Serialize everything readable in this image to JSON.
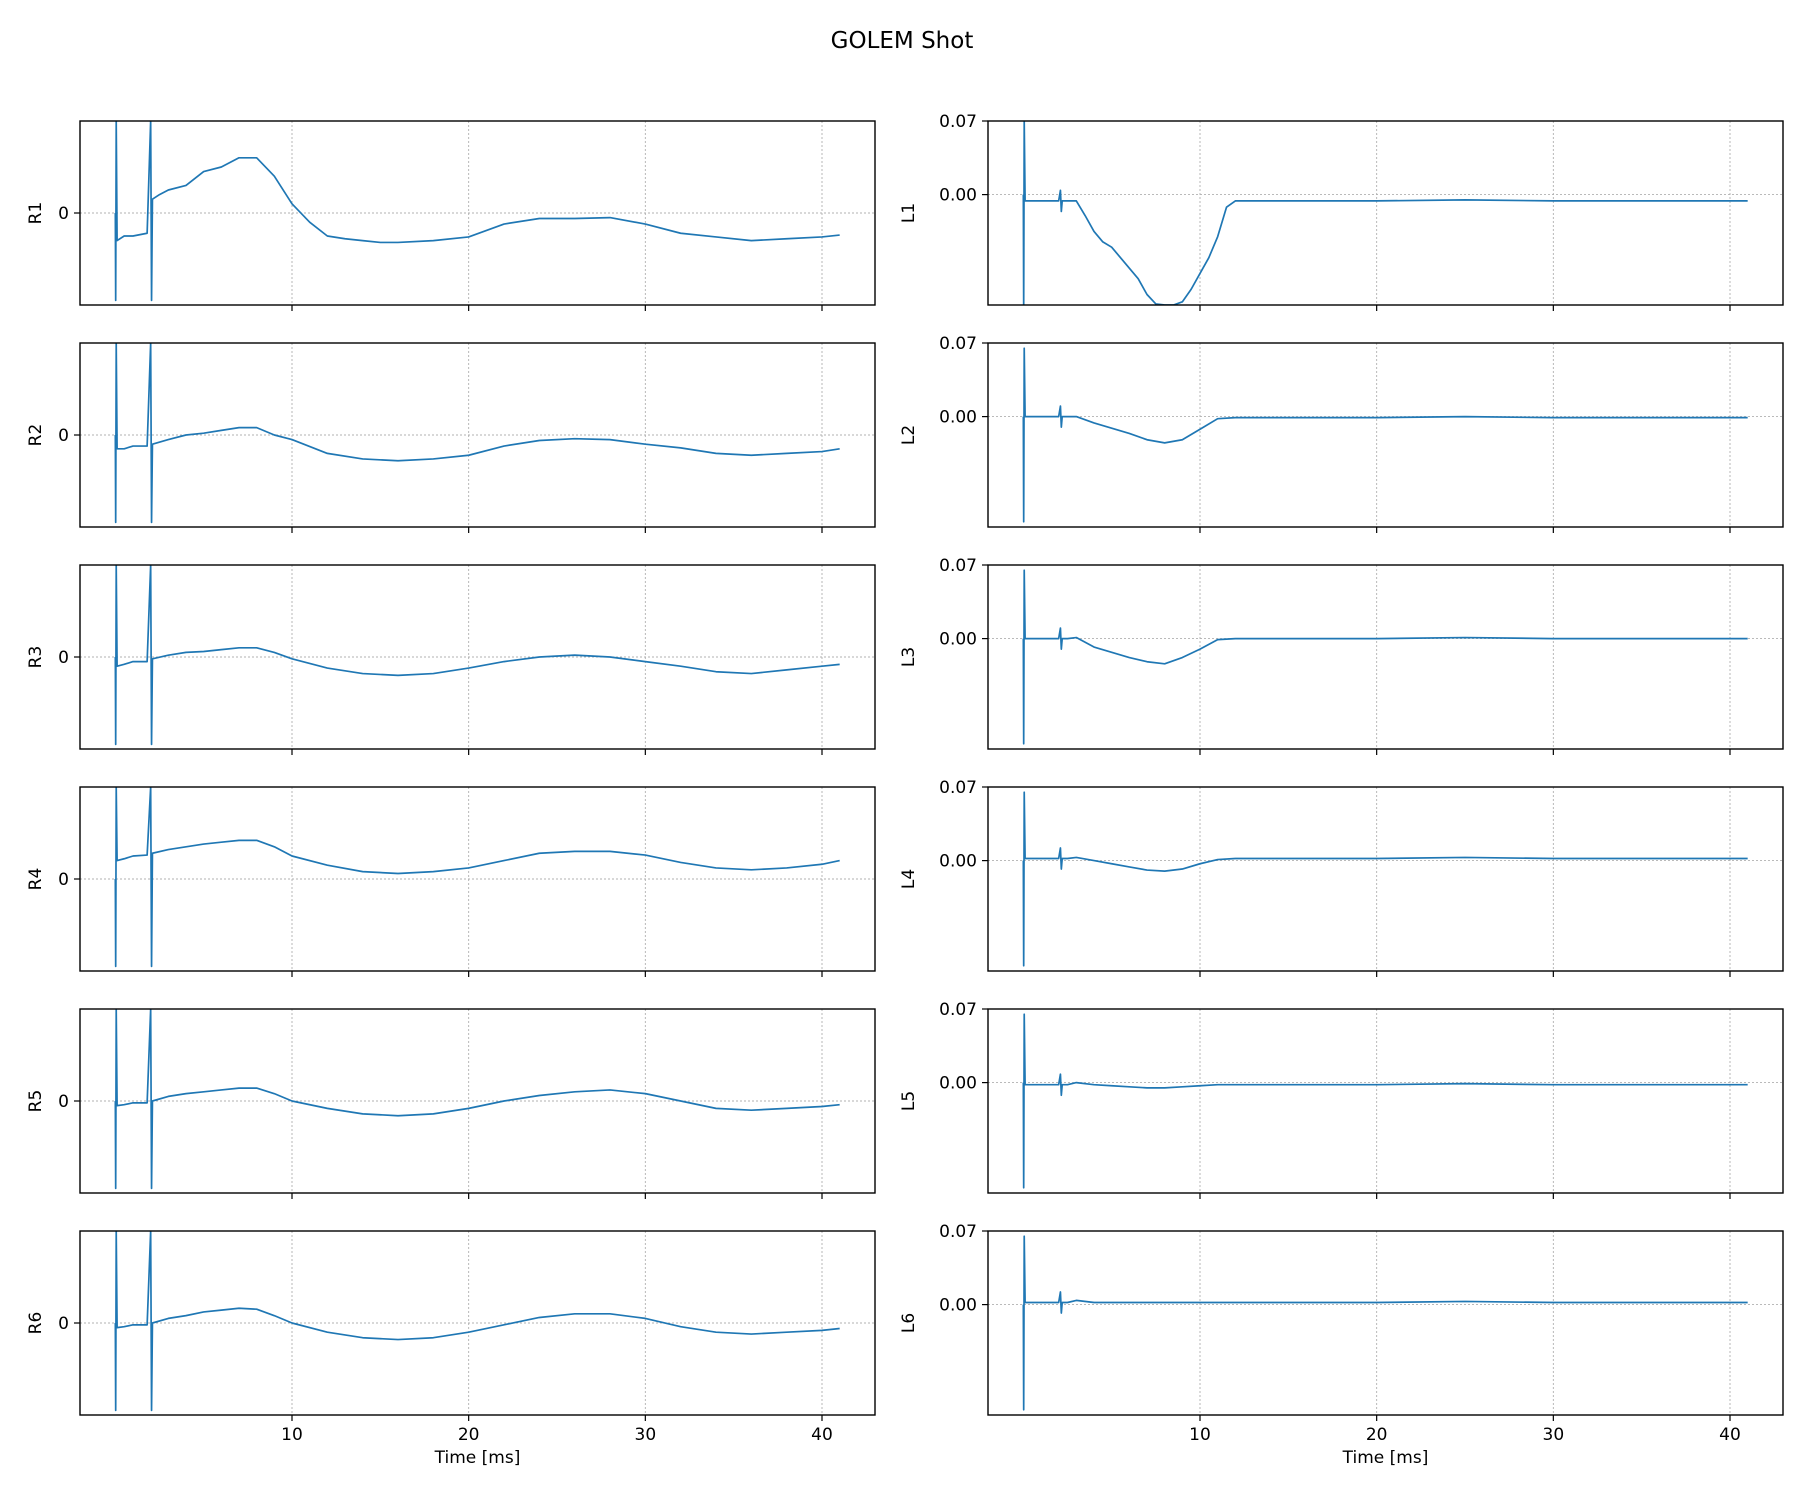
{
  "figure": {
    "title": "GOLEM Shot"
  },
  "style": {
    "series_color": "#1f77b4",
    "grid_color": "#b0b0b0"
  },
  "chart_data": [
    {
      "type": "line",
      "panel": "R1",
      "ylabel": "R1",
      "xlabel": "",
      "xlim": [
        -2,
        43
      ],
      "ylim": [
        -1,
        1
      ],
      "yticks": [
        0
      ],
      "ytick_labels": [
        "0"
      ],
      "xticks": [
        10,
        20,
        30,
        40
      ],
      "xtick_labels": [
        "",
        "",
        "",
        ""
      ],
      "grid": true,
      "x": [
        0,
        0.02,
        0.05,
        0.1,
        0.5,
        1,
        1.8,
        2,
        2.05,
        2.1,
        2.5,
        3,
        4,
        5,
        6,
        7,
        8,
        9,
        10,
        11,
        12,
        13,
        14,
        15,
        16,
        18,
        20,
        22,
        24,
        26,
        28,
        30,
        32,
        34,
        36,
        38,
        40,
        41
      ],
      "y": [
        0,
        -0.95,
        1,
        -0.3,
        -0.25,
        -0.25,
        -0.22,
        1,
        -0.95,
        0.15,
        0.2,
        0.25,
        0.3,
        0.45,
        0.5,
        0.6,
        0.6,
        0.4,
        0.1,
        -0.1,
        -0.25,
        -0.28,
        -0.3,
        -0.32,
        -0.32,
        -0.3,
        -0.26,
        -0.12,
        -0.06,
        -0.06,
        -0.05,
        -0.12,
        -0.22,
        -0.26,
        -0.3,
        -0.28,
        -0.26,
        -0.24
      ]
    },
    {
      "type": "line",
      "panel": "R2",
      "ylabel": "R2",
      "xlabel": "",
      "xlim": [
        -2,
        43
      ],
      "ylim": [
        -1,
        1
      ],
      "yticks": [
        0
      ],
      "ytick_labels": [
        "0"
      ],
      "xticks": [
        10,
        20,
        30,
        40
      ],
      "xtick_labels": [
        "",
        "",
        "",
        ""
      ],
      "grid": true,
      "x": [
        0,
        0.02,
        0.05,
        0.1,
        0.5,
        1,
        1.8,
        2,
        2.05,
        2.1,
        3,
        4,
        5,
        6,
        7,
        8,
        9,
        10,
        12,
        14,
        16,
        18,
        20,
        22,
        24,
        26,
        28,
        30,
        32,
        34,
        36,
        38,
        40,
        41
      ],
      "y": [
        0,
        -0.95,
        1,
        -0.15,
        -0.15,
        -0.12,
        -0.12,
        1,
        -0.95,
        -0.1,
        -0.05,
        0,
        0.02,
        0.05,
        0.08,
        0.08,
        0,
        -0.05,
        -0.2,
        -0.26,
        -0.28,
        -0.26,
        -0.22,
        -0.12,
        -0.06,
        -0.04,
        -0.05,
        -0.1,
        -0.14,
        -0.2,
        -0.22,
        -0.2,
        -0.18,
        -0.15
      ]
    },
    {
      "type": "line",
      "panel": "R3",
      "ylabel": "R3",
      "xlabel": "",
      "xlim": [
        -2,
        43
      ],
      "ylim": [
        -1,
        1
      ],
      "yticks": [
        0
      ],
      "ytick_labels": [
        "0"
      ],
      "xticks": [
        10,
        20,
        30,
        40
      ],
      "xtick_labels": [
        "",
        "",
        "",
        ""
      ],
      "grid": true,
      "x": [
        0,
        0.02,
        0.05,
        0.1,
        0.5,
        1,
        1.8,
        2,
        2.05,
        2.1,
        3,
        4,
        5,
        6,
        7,
        8,
        9,
        10,
        12,
        14,
        16,
        18,
        20,
        22,
        24,
        26,
        28,
        30,
        32,
        34,
        36,
        38,
        40,
        41
      ],
      "y": [
        0,
        -0.95,
        1,
        -0.1,
        -0.08,
        -0.05,
        -0.05,
        1,
        -0.95,
        -0.02,
        0.02,
        0.05,
        0.06,
        0.08,
        0.1,
        0.1,
        0.05,
        -0.02,
        -0.12,
        -0.18,
        -0.2,
        -0.18,
        -0.12,
        -0.05,
        0,
        0.02,
        0,
        -0.05,
        -0.1,
        -0.16,
        -0.18,
        -0.14,
        -0.1,
        -0.08
      ]
    },
    {
      "type": "line",
      "panel": "R4",
      "ylabel": "R4",
      "xlabel": "",
      "xlim": [
        -2,
        43
      ],
      "ylim": [
        -1,
        1
      ],
      "yticks": [
        0
      ],
      "ytick_labels": [
        "0"
      ],
      "xticks": [
        10,
        20,
        30,
        40
      ],
      "xtick_labels": [
        "",
        "",
        "",
        ""
      ],
      "grid": true,
      "x": [
        0,
        0.02,
        0.05,
        0.1,
        0.5,
        1,
        1.8,
        2,
        2.05,
        2.1,
        3,
        4,
        5,
        6,
        7,
        8,
        9,
        10,
        12,
        14,
        16,
        18,
        20,
        22,
        24,
        26,
        28,
        30,
        32,
        34,
        36,
        38,
        40,
        41
      ],
      "y": [
        0,
        -0.95,
        1,
        0.2,
        0.22,
        0.25,
        0.26,
        1,
        -0.95,
        0.28,
        0.32,
        0.35,
        0.38,
        0.4,
        0.42,
        0.42,
        0.35,
        0.25,
        0.15,
        0.08,
        0.06,
        0.08,
        0.12,
        0.2,
        0.28,
        0.3,
        0.3,
        0.26,
        0.18,
        0.12,
        0.1,
        0.12,
        0.16,
        0.2
      ]
    },
    {
      "type": "line",
      "panel": "R5",
      "ylabel": "R5",
      "xlabel": "",
      "xlim": [
        -2,
        43
      ],
      "ylim": [
        -1,
        1
      ],
      "yticks": [
        0
      ],
      "ytick_labels": [
        "0"
      ],
      "xticks": [
        10,
        20,
        30,
        40
      ],
      "xtick_labels": [
        "",
        "",
        "",
        ""
      ],
      "grid": true,
      "x": [
        0,
        0.02,
        0.05,
        0.1,
        0.5,
        1,
        1.8,
        2,
        2.05,
        2.1,
        3,
        4,
        5,
        6,
        7,
        8,
        9,
        10,
        12,
        14,
        16,
        18,
        20,
        22,
        24,
        26,
        28,
        30,
        32,
        34,
        36,
        38,
        40,
        41
      ],
      "y": [
        0,
        -0.95,
        1,
        -0.05,
        -0.04,
        -0.02,
        -0.02,
        1,
        -0.95,
        0,
        0.05,
        0.08,
        0.1,
        0.12,
        0.14,
        0.14,
        0.08,
        0,
        -0.08,
        -0.14,
        -0.16,
        -0.14,
        -0.08,
        0,
        0.06,
        0.1,
        0.12,
        0.08,
        0,
        -0.08,
        -0.1,
        -0.08,
        -0.06,
        -0.04
      ]
    },
    {
      "type": "line",
      "panel": "R6",
      "ylabel": "R6",
      "xlabel": "Time [ms]",
      "xlim": [
        -2,
        43
      ],
      "ylim": [
        -1,
        1
      ],
      "yticks": [
        0
      ],
      "ytick_labels": [
        "0"
      ],
      "xticks": [
        10,
        20,
        30,
        40
      ],
      "xtick_labels": [
        "10",
        "20",
        "30",
        "40"
      ],
      "grid": true,
      "x": [
        0,
        0.02,
        0.05,
        0.1,
        0.5,
        1,
        1.8,
        2,
        2.05,
        2.1,
        3,
        4,
        5,
        6,
        7,
        8,
        9,
        10,
        12,
        14,
        16,
        18,
        20,
        22,
        24,
        26,
        28,
        30,
        32,
        34,
        36,
        38,
        40,
        41
      ],
      "y": [
        0,
        -0.95,
        1,
        -0.05,
        -0.04,
        -0.02,
        -0.02,
        1,
        -0.95,
        0,
        0.05,
        0.08,
        0.12,
        0.14,
        0.16,
        0.15,
        0.08,
        0,
        -0.1,
        -0.16,
        -0.18,
        -0.16,
        -0.1,
        -0.02,
        0.06,
        0.1,
        0.1,
        0.05,
        -0.04,
        -0.1,
        -0.12,
        -0.1,
        -0.08,
        -0.06
      ]
    },
    {
      "type": "line",
      "panel": "L1",
      "ylabel": "L1",
      "xlabel": "",
      "xlim": [
        -2,
        43
      ],
      "ylim": [
        -0.105,
        0.07
      ],
      "yticks": [
        0.07,
        0
      ],
      "ytick_labels": [
        "0.07",
        "0.00"
      ],
      "xticks": [
        10,
        20,
        30,
        40
      ],
      "xtick_labels": [
        "",
        "",
        "",
        ""
      ],
      "grid": true,
      "x": [
        0,
        0.02,
        0.05,
        0.1,
        0.5,
        1,
        2,
        2.1,
        2.15,
        2.2,
        2.5,
        3,
        3.5,
        4,
        4.5,
        5,
        5.5,
        6,
        6.5,
        7,
        7.5,
        8,
        8.5,
        9,
        9.5,
        10,
        10.5,
        11,
        11.5,
        12,
        15,
        20,
        25,
        30,
        35,
        40,
        41
      ],
      "y": [
        0,
        -0.11,
        0.07,
        -0.006,
        -0.006,
        -0.006,
        -0.006,
        0.004,
        -0.016,
        -0.006,
        -0.006,
        -0.006,
        -0.02,
        -0.035,
        -0.045,
        -0.05,
        -0.06,
        -0.07,
        -0.08,
        -0.095,
        -0.104,
        -0.105,
        -0.105,
        -0.102,
        -0.09,
        -0.075,
        -0.06,
        -0.04,
        -0.012,
        -0.006,
        -0.006,
        -0.006,
        -0.005,
        -0.006,
        -0.006,
        -0.006,
        -0.006
      ]
    },
    {
      "type": "line",
      "panel": "L2",
      "ylabel": "L2",
      "xlabel": "",
      "xlim": [
        -2,
        43
      ],
      "ylim": [
        -0.105,
        0.07
      ],
      "yticks": [
        0.07,
        0
      ],
      "ytick_labels": [
        "0.07",
        "0.00"
      ],
      "xticks": [
        10,
        20,
        30,
        40
      ],
      "xtick_labels": [
        "",
        "",
        "",
        ""
      ],
      "grid": true,
      "x": [
        0,
        0.02,
        0.05,
        0.1,
        0.5,
        1,
        2,
        2.1,
        2.15,
        2.2,
        2.5,
        3,
        4,
        5,
        6,
        7,
        8,
        9,
        10,
        11,
        12,
        15,
        20,
        25,
        30,
        35,
        40,
        41
      ],
      "y": [
        0,
        -0.1,
        0.065,
        0,
        0,
        0,
        0,
        0.01,
        -0.01,
        0,
        0,
        0,
        -0.006,
        -0.011,
        -0.016,
        -0.022,
        -0.025,
        -0.022,
        -0.012,
        -0.002,
        -0.001,
        -0.001,
        -0.001,
        0,
        -0.001,
        -0.001,
        -0.001,
        -0.001
      ]
    },
    {
      "type": "line",
      "panel": "L3",
      "ylabel": "L3",
      "xlabel": "",
      "xlim": [
        -2,
        43
      ],
      "ylim": [
        -0.105,
        0.07
      ],
      "yticks": [
        0.07,
        0
      ],
      "ytick_labels": [
        "0.07",
        "0.00"
      ],
      "xticks": [
        10,
        20,
        30,
        40
      ],
      "xtick_labels": [
        "",
        "",
        "",
        ""
      ],
      "grid": true,
      "x": [
        0,
        0.02,
        0.05,
        0.1,
        0.5,
        1,
        2,
        2.1,
        2.15,
        2.2,
        2.5,
        3,
        4,
        5,
        6,
        7,
        8,
        9,
        10,
        11,
        12,
        15,
        20,
        25,
        30,
        35,
        40,
        41
      ],
      "y": [
        0,
        -0.1,
        0.065,
        0,
        0,
        0,
        0,
        0.01,
        -0.01,
        0,
        0,
        0.001,
        -0.008,
        -0.013,
        -0.018,
        -0.022,
        -0.024,
        -0.018,
        -0.01,
        -0.001,
        0,
        0,
        0,
        0.001,
        0,
        0,
        0,
        0
      ]
    },
    {
      "type": "line",
      "panel": "L4",
      "ylabel": "L4",
      "xlabel": "",
      "xlim": [
        -2,
        43
      ],
      "ylim": [
        -0.105,
        0.07
      ],
      "yticks": [
        0.07,
        0
      ],
      "ytick_labels": [
        "0.07",
        "0.00"
      ],
      "xticks": [
        10,
        20,
        30,
        40
      ],
      "xtick_labels": [
        "",
        "",
        "",
        ""
      ],
      "grid": true,
      "x": [
        0,
        0.02,
        0.05,
        0.1,
        0.5,
        1,
        2,
        2.1,
        2.15,
        2.2,
        2.5,
        3,
        4,
        5,
        6,
        7,
        8,
        9,
        10,
        11,
        12,
        15,
        20,
        25,
        30,
        35,
        40,
        41
      ],
      "y": [
        0,
        -0.1,
        0.065,
        0.002,
        0.002,
        0.002,
        0.002,
        0.012,
        -0.008,
        0.002,
        0.002,
        0.003,
        0,
        -0.003,
        -0.006,
        -0.009,
        -0.01,
        -0.008,
        -0.003,
        0.001,
        0.002,
        0.002,
        0.002,
        0.003,
        0.002,
        0.002,
        0.002,
        0.002
      ]
    },
    {
      "type": "line",
      "panel": "L5",
      "ylabel": "L5",
      "xlabel": "",
      "xlim": [
        -2,
        43
      ],
      "ylim": [
        -0.105,
        0.07
      ],
      "yticks": [
        0.07,
        0
      ],
      "ytick_labels": [
        "0.07",
        "0.00"
      ],
      "xticks": [
        10,
        20,
        30,
        40
      ],
      "xtick_labels": [
        "",
        "",
        "",
        ""
      ],
      "grid": true,
      "x": [
        0,
        0.02,
        0.05,
        0.1,
        0.5,
        1,
        2,
        2.1,
        2.15,
        2.2,
        2.5,
        3,
        4,
        5,
        6,
        7,
        8,
        9,
        10,
        11,
        12,
        15,
        20,
        25,
        30,
        35,
        40,
        41
      ],
      "y": [
        0,
        -0.1,
        0.065,
        -0.002,
        -0.002,
        -0.002,
        -0.002,
        0.008,
        -0.012,
        -0.002,
        -0.002,
        0,
        -0.002,
        -0.003,
        -0.004,
        -0.005,
        -0.005,
        -0.004,
        -0.003,
        -0.002,
        -0.002,
        -0.002,
        -0.002,
        -0.001,
        -0.002,
        -0.002,
        -0.002,
        -0.002
      ]
    },
    {
      "type": "line",
      "panel": "L6",
      "ylabel": "L6",
      "xlabel": "Time [ms]",
      "xlim": [
        -2,
        43
      ],
      "ylim": [
        -0.105,
        0.07
      ],
      "yticks": [
        0.07,
        0
      ],
      "ytick_labels": [
        "0.07",
        "0.00"
      ],
      "xticks": [
        10,
        20,
        30,
        40
      ],
      "xtick_labels": [
        "10",
        "20",
        "30",
        "40"
      ],
      "grid": true,
      "x": [
        0,
        0.02,
        0.05,
        0.1,
        0.5,
        1,
        2,
        2.1,
        2.15,
        2.2,
        2.5,
        3,
        4,
        5,
        6,
        8,
        10,
        12,
        15,
        20,
        25,
        30,
        35,
        40,
        41
      ],
      "y": [
        0,
        -0.1,
        0.065,
        0.002,
        0.002,
        0.002,
        0.002,
        0.012,
        -0.008,
        0.002,
        0.002,
        0.004,
        0.002,
        0.002,
        0.002,
        0.002,
        0.002,
        0.002,
        0.002,
        0.002,
        0.003,
        0.002,
        0.002,
        0.002,
        0.002
      ]
    }
  ]
}
